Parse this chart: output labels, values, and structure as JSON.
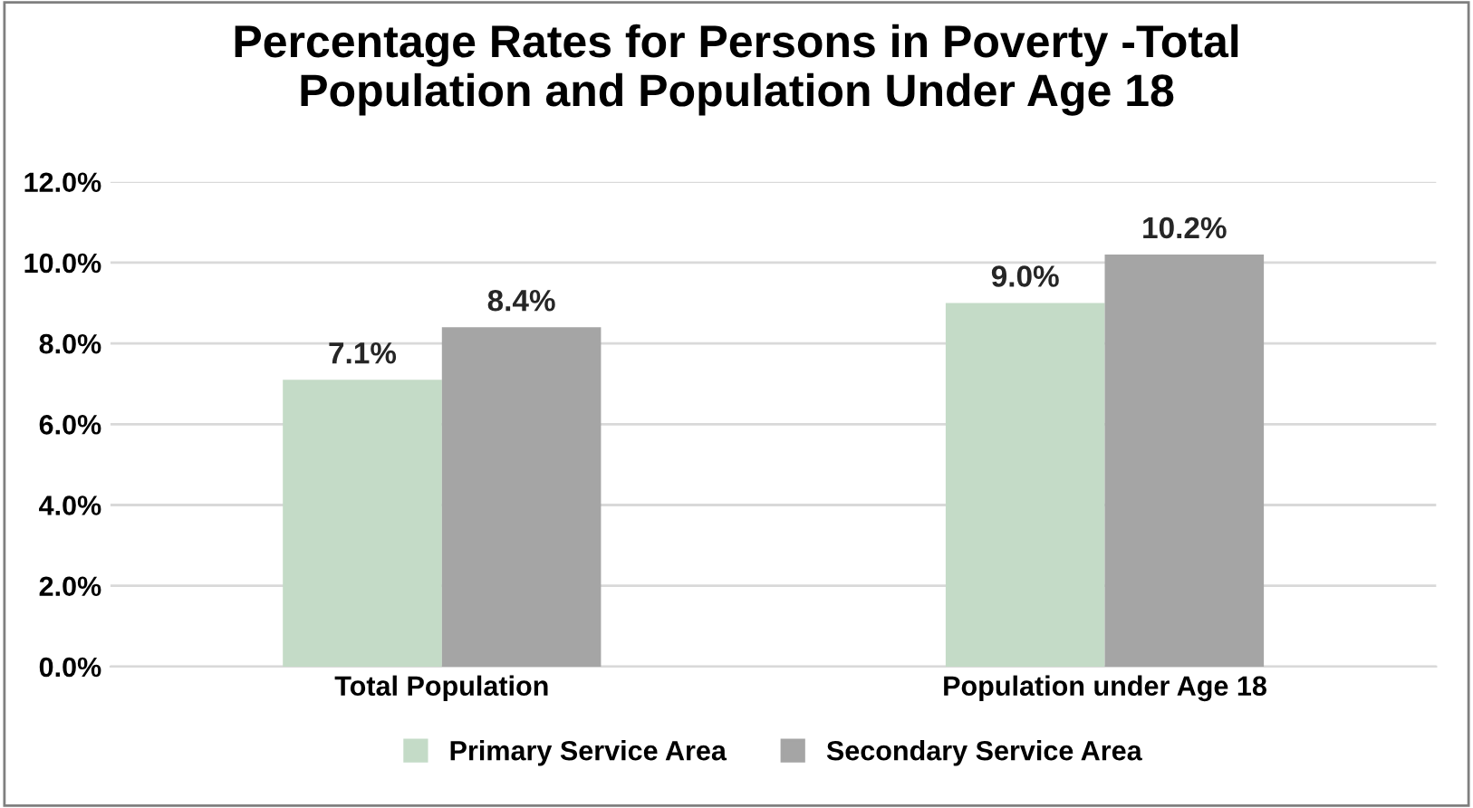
{
  "chart_data": {
    "type": "bar",
    "title": "Percentage Rates for Persons in Poverty -Total\nPopulation and Population Under Age 18",
    "categories": [
      "Total Population",
      "Population under Age 18"
    ],
    "series": [
      {
        "name": "Primary Service Area",
        "color": "#c4dbc7",
        "values": [
          7.1,
          9.0
        ],
        "value_labels": [
          "7.1%",
          "9.0%"
        ]
      },
      {
        "name": "Secondary Service Area",
        "color": "#a5a5a5",
        "values": [
          8.4,
          10.2
        ],
        "value_labels": [
          "8.4%",
          "10.2%"
        ]
      }
    ],
    "ylim": [
      0,
      12
    ],
    "yticks": [
      {
        "value": 0,
        "label": "0.0%"
      },
      {
        "value": 2,
        "label": "2.0%"
      },
      {
        "value": 4,
        "label": "4.0%"
      },
      {
        "value": 6,
        "label": "6.0%"
      },
      {
        "value": 8,
        "label": "8.0%"
      },
      {
        "value": 10,
        "label": "10.0%"
      },
      {
        "value": 12,
        "label": "12.0%"
      }
    ],
    "grid": "y",
    "legend": "bottom"
  }
}
